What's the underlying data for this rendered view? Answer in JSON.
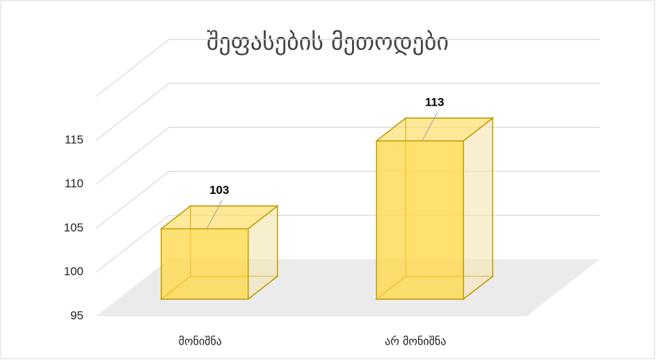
{
  "chart_data": {
    "type": "bar3d",
    "title": "შეფასების მეთოდები",
    "categories": [
      "მონიშნა",
      "არ მონიშნა"
    ],
    "values": [
      103,
      113
    ],
    "color": "#ffd84a",
    "ylim": [
      95,
      120
    ],
    "yticks": [
      95,
      100,
      105,
      110,
      115
    ],
    "grid": true
  }
}
